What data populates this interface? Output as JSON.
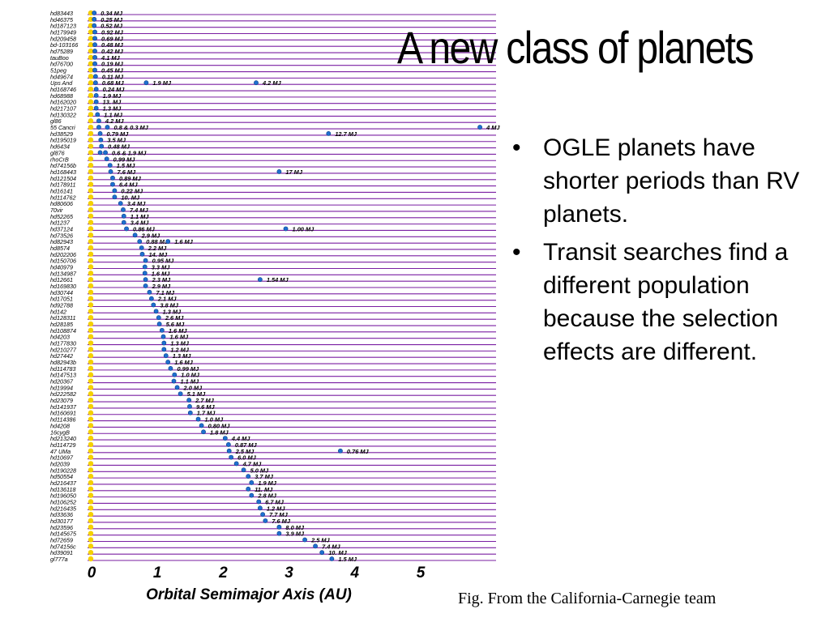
{
  "slide": {
    "title": "A new class of planets",
    "bullets": [
      "OGLE planets have shorter periods than RV planets.",
      "Transit searches find a different population because the selection effects are different."
    ],
    "caption": "Fig. From the California-Carnegie team"
  },
  "colors": {
    "row_line": "#7a1fa2",
    "star_dot": "#f5d000",
    "planet_dot": "#1f6fd1",
    "text": "#000000"
  },
  "chart_data": {
    "type": "scatter",
    "xlabel": "Orbital Semimajor Axis  (AU)",
    "ylabel": "",
    "xlim": [
      0,
      6
    ],
    "xticks": [
      "0",
      "1",
      "2",
      "3",
      "4",
      "5"
    ],
    "grid": "horizontal row lines",
    "stars": [
      {
        "name": "hd83443",
        "planets": [
          {
            "a": 0.04,
            "m": "0.34 MJ"
          }
        ]
      },
      {
        "name": "hd46375",
        "planets": [
          {
            "a": 0.04,
            "m": "0.25 MJ"
          }
        ]
      },
      {
        "name": "hd187123",
        "planets": [
          {
            "a": 0.04,
            "m": "0.52 MJ"
          }
        ]
      },
      {
        "name": "hd179949",
        "planets": [
          {
            "a": 0.05,
            "m": "0.92 MJ"
          }
        ]
      },
      {
        "name": "hd209458",
        "planets": [
          {
            "a": 0.05,
            "m": "0.69 MJ"
          }
        ]
      },
      {
        "name": "bd-103166",
        "planets": [
          {
            "a": 0.05,
            "m": "0.48 MJ"
          }
        ]
      },
      {
        "name": "hd75289",
        "planets": [
          {
            "a": 0.05,
            "m": "0.42 MJ"
          }
        ]
      },
      {
        "name": "tauBoo",
        "planets": [
          {
            "a": 0.05,
            "m": "4.1 MJ"
          }
        ]
      },
      {
        "name": "hd76700",
        "planets": [
          {
            "a": 0.05,
            "m": "0.19 MJ"
          }
        ]
      },
      {
        "name": "51peg",
        "planets": [
          {
            "a": 0.05,
            "m": "0.45 MJ"
          }
        ]
      },
      {
        "name": "hd49674",
        "planets": [
          {
            "a": 0.06,
            "m": "0.11 MJ"
          }
        ]
      },
      {
        "name": "Ups And",
        "planets": [
          {
            "a": 0.06,
            "m": "0.68 MJ"
          },
          {
            "a": 0.83,
            "m": "1.9 MJ"
          },
          {
            "a": 2.5,
            "m": "4.2 MJ"
          }
        ]
      },
      {
        "name": "hd168746",
        "planets": [
          {
            "a": 0.07,
            "m": "0.24 MJ"
          }
        ]
      },
      {
        "name": "hd68988",
        "planets": [
          {
            "a": 0.07,
            "m": "1.9 MJ"
          }
        ]
      },
      {
        "name": "hd162020",
        "planets": [
          {
            "a": 0.07,
            "m": "13. MJ"
          }
        ]
      },
      {
        "name": "hd217107",
        "planets": [
          {
            "a": 0.07,
            "m": "1.3 MJ"
          }
        ]
      },
      {
        "name": "hd130322",
        "planets": [
          {
            "a": 0.09,
            "m": "1.1 MJ"
          }
        ]
      },
      {
        "name": "gl86",
        "planets": [
          {
            "a": 0.11,
            "m": "4.2 MJ"
          }
        ]
      },
      {
        "name": "55 Cancri",
        "planets": [
          {
            "a": 0.11,
            "m": ""
          },
          {
            "a": 0.24,
            "m": "0.8 & 0.3 MJ"
          },
          {
            "a": 5.9,
            "m": "4 MJ"
          }
        ]
      },
      {
        "name": "hd38529",
        "planets": [
          {
            "a": 0.13,
            "m": "0.79 MJ"
          },
          {
            "a": 3.6,
            "m": "12.7 MJ"
          }
        ]
      },
      {
        "name": "hd195019",
        "planets": [
          {
            "a": 0.14,
            "m": "3.5 MJ"
          }
        ]
      },
      {
        "name": "hd6434",
        "planets": [
          {
            "a": 0.15,
            "m": "0.48 MJ"
          }
        ]
      },
      {
        "name": "gl876",
        "planets": [
          {
            "a": 0.13,
            "m": ""
          },
          {
            "a": 0.21,
            "m": "0.6 & 1.9 MJ"
          }
        ]
      },
      {
        "name": "rhoCrB",
        "planets": [
          {
            "a": 0.23,
            "m": "0.99 MJ"
          }
        ]
      },
      {
        "name": "hd74156b",
        "planets": [
          {
            "a": 0.28,
            "m": "1.5 MJ"
          }
        ]
      },
      {
        "name": "hd168443",
        "planets": [
          {
            "a": 0.29,
            "m": "7.6 MJ"
          },
          {
            "a": 2.85,
            "m": "17 MJ"
          }
        ]
      },
      {
        "name": "hd121504",
        "planets": [
          {
            "a": 0.32,
            "m": "0.89 MJ"
          }
        ]
      },
      {
        "name": "hd178911",
        "planets": [
          {
            "a": 0.32,
            "m": "6.4 MJ"
          }
        ]
      },
      {
        "name": "hd16141",
        "planets": [
          {
            "a": 0.35,
            "m": "0.22 MJ"
          }
        ]
      },
      {
        "name": "hd114762",
        "planets": [
          {
            "a": 0.35,
            "m": "10. MJ"
          }
        ]
      },
      {
        "name": "hd80606",
        "planets": [
          {
            "a": 0.44,
            "m": "3.4 MJ"
          }
        ]
      },
      {
        "name": "70vir",
        "planets": [
          {
            "a": 0.48,
            "m": "7.4 MJ"
          }
        ]
      },
      {
        "name": "hd52265",
        "planets": [
          {
            "a": 0.49,
            "m": "1.1 MJ"
          }
        ]
      },
      {
        "name": "hd1237",
        "planets": [
          {
            "a": 0.49,
            "m": "3.4 MJ"
          }
        ]
      },
      {
        "name": "hd37124",
        "planets": [
          {
            "a": 0.53,
            "m": "0.86 MJ"
          },
          {
            "a": 2.95,
            "m": "1.00 MJ"
          }
        ]
      },
      {
        "name": "hd73526",
        "planets": [
          {
            "a": 0.66,
            "m": "2.9 MJ"
          }
        ]
      },
      {
        "name": "hd82943",
        "planets": [
          {
            "a": 0.73,
            "m": "0.88 MJ"
          },
          {
            "a": 1.16,
            "m": "1.6 MJ"
          }
        ]
      },
      {
        "name": "hd8574",
        "planets": [
          {
            "a": 0.76,
            "m": "2.2 MJ"
          }
        ]
      },
      {
        "name": "hd202206",
        "planets": [
          {
            "a": 0.77,
            "m": "14. MJ"
          }
        ]
      },
      {
        "name": "hd150706",
        "planets": [
          {
            "a": 0.82,
            "m": "0.95 MJ"
          }
        ]
      },
      {
        "name": "hd40979",
        "planets": [
          {
            "a": 0.81,
            "m": "3.3 MJ"
          }
        ]
      },
      {
        "name": "hd134987",
        "planets": [
          {
            "a": 0.81,
            "m": "1.6 MJ"
          }
        ]
      },
      {
        "name": "hd12661",
        "planets": [
          {
            "a": 0.82,
            "m": "2.3 MJ"
          },
          {
            "a": 2.56,
            "m": "1.54 MJ"
          }
        ]
      },
      {
        "name": "hd169830",
        "planets": [
          {
            "a": 0.82,
            "m": "2.9 MJ"
          }
        ]
      },
      {
        "name": "hd30744",
        "planets": [
          {
            "a": 0.88,
            "m": "7.1 MJ"
          }
        ]
      },
      {
        "name": "hd17051",
        "planets": [
          {
            "a": 0.91,
            "m": "2.1 MJ"
          }
        ]
      },
      {
        "name": "hd92788",
        "planets": [
          {
            "a": 0.94,
            "m": "3.8 MJ"
          }
        ]
      },
      {
        "name": "hd142",
        "planets": [
          {
            "a": 0.98,
            "m": "1.3 MJ"
          }
        ]
      },
      {
        "name": "hd128311",
        "planets": [
          {
            "a": 1.02,
            "m": "2.6 MJ"
          }
        ]
      },
      {
        "name": "hd28185",
        "planets": [
          {
            "a": 1.03,
            "m": "5.6 MJ"
          }
        ]
      },
      {
        "name": "hd108874",
        "planets": [
          {
            "a": 1.07,
            "m": "1.6 MJ"
          }
        ]
      },
      {
        "name": "hd4203",
        "planets": [
          {
            "a": 1.09,
            "m": "1.6 MJ"
          }
        ]
      },
      {
        "name": "hd177830",
        "planets": [
          {
            "a": 1.1,
            "m": "1.3 MJ"
          }
        ]
      },
      {
        "name": "hd210277",
        "planets": [
          {
            "a": 1.1,
            "m": "1.2 MJ"
          }
        ]
      },
      {
        "name": "hd27442",
        "planets": [
          {
            "a": 1.13,
            "m": "1.3 MJ"
          }
        ]
      },
      {
        "name": "hd82943b",
        "planets": [
          {
            "a": 1.16,
            "m": "1.6 MJ"
          }
        ]
      },
      {
        "name": "hd114783",
        "planets": [
          {
            "a": 1.2,
            "m": "0.99 MJ"
          }
        ]
      },
      {
        "name": "hd147513",
        "planets": [
          {
            "a": 1.26,
            "m": "1.0 MJ"
          }
        ]
      },
      {
        "name": "hd20367",
        "planets": [
          {
            "a": 1.25,
            "m": "1.1 MJ"
          }
        ]
      },
      {
        "name": "hd19994",
        "planets": [
          {
            "a": 1.3,
            "m": "2.0 MJ"
          }
        ]
      },
      {
        "name": "hd222582",
        "planets": [
          {
            "a": 1.35,
            "m": "5.1 MJ"
          }
        ]
      },
      {
        "name": "hd23079",
        "planets": [
          {
            "a": 1.48,
            "m": "2.7 MJ"
          }
        ]
      },
      {
        "name": "hd141937",
        "planets": [
          {
            "a": 1.49,
            "m": "9.6 MJ"
          }
        ]
      },
      {
        "name": "hd160691",
        "planets": [
          {
            "a": 1.5,
            "m": "1.7 MJ"
          }
        ]
      },
      {
        "name": "hd114386",
        "planets": [
          {
            "a": 1.62,
            "m": "1.0 MJ"
          }
        ]
      },
      {
        "name": "hd4208",
        "planets": [
          {
            "a": 1.67,
            "m": "0.80 MJ"
          }
        ]
      },
      {
        "name": "16cygB",
        "planets": [
          {
            "a": 1.7,
            "m": "1.8 MJ"
          }
        ]
      },
      {
        "name": "hd213240",
        "planets": [
          {
            "a": 2.03,
            "m": "4.4 MJ"
          }
        ]
      },
      {
        "name": "hd114729",
        "planets": [
          {
            "a": 2.08,
            "m": "0.87 MJ"
          }
        ]
      },
      {
        "name": "47 UMa",
        "planets": [
          {
            "a": 2.09,
            "m": "2.5 MJ"
          },
          {
            "a": 3.78,
            "m": "0.76 MJ"
          }
        ]
      },
      {
        "name": "hd10697",
        "planets": [
          {
            "a": 2.12,
            "m": "6.0 MJ"
          }
        ]
      },
      {
        "name": "hd2039",
        "planets": [
          {
            "a": 2.2,
            "m": "4.7 MJ"
          }
        ]
      },
      {
        "name": "hd190228",
        "planets": [
          {
            "a": 2.31,
            "m": "5.0 MJ"
          }
        ]
      },
      {
        "name": "hd50554",
        "planets": [
          {
            "a": 2.38,
            "m": "3.7 MJ"
          }
        ]
      },
      {
        "name": "hd216437",
        "planets": [
          {
            "a": 2.43,
            "m": "1.9 MJ"
          }
        ]
      },
      {
        "name": "hd136118",
        "planets": [
          {
            "a": 2.38,
            "m": "11. MJ"
          }
        ]
      },
      {
        "name": "hd196050",
        "planets": [
          {
            "a": 2.43,
            "m": "2.8 MJ"
          }
        ]
      },
      {
        "name": "hd106252",
        "planets": [
          {
            "a": 2.54,
            "m": "6.7 MJ"
          }
        ]
      },
      {
        "name": "hd216435",
        "planets": [
          {
            "a": 2.56,
            "m": "1.2 MJ"
          }
        ]
      },
      {
        "name": "hd33636",
        "planets": [
          {
            "a": 2.6,
            "m": "7.7 MJ"
          }
        ]
      },
      {
        "name": "hd30177",
        "planets": [
          {
            "a": 2.64,
            "m": "7.6 MJ"
          }
        ]
      },
      {
        "name": "hd23596",
        "planets": [
          {
            "a": 2.85,
            "m": "8.0 MJ"
          }
        ]
      },
      {
        "name": "hd145675",
        "planets": [
          {
            "a": 2.85,
            "m": "3.9 MJ"
          }
        ]
      },
      {
        "name": "hd72659",
        "planets": [
          {
            "a": 3.24,
            "m": "2.5 MJ"
          }
        ]
      },
      {
        "name": "hd74156c",
        "planets": [
          {
            "a": 3.4,
            "m": "7.4 MJ"
          }
        ]
      },
      {
        "name": "hd39091",
        "planets": [
          {
            "a": 3.5,
            "m": "10. MJ"
          }
        ]
      },
      {
        "name": "gl777a",
        "planets": [
          {
            "a": 3.65,
            "m": "1.5 MJ"
          }
        ]
      }
    ]
  }
}
